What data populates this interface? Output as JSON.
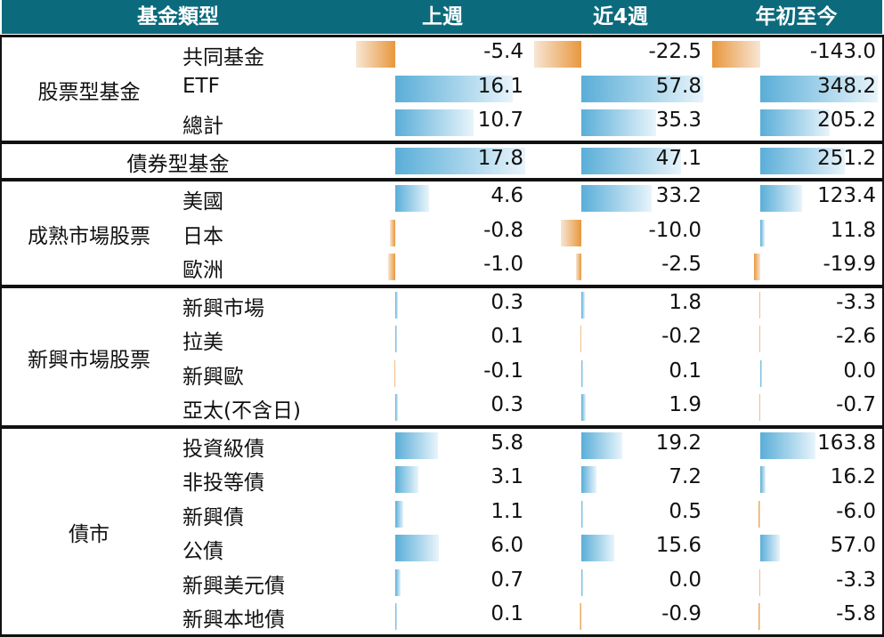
{
  "chart_data": {
    "type": "table",
    "columns": [
      "基金類型",
      "上週",
      "近4週",
      "年初至今"
    ],
    "groups": [
      {
        "name": "股票型基金",
        "rows": [
          {
            "label": "共同基金",
            "values": [
              -5.4,
              -22.5,
              -143.0
            ],
            "text": [
              "-5.4",
              "-22.5",
              "-143.0"
            ]
          },
          {
            "label": "ETF",
            "values": [
              16.1,
              57.8,
              348.2
            ],
            "text": [
              "16.1",
              "57.8",
              "348.2"
            ]
          },
          {
            "label": "總計",
            "values": [
              10.7,
              35.3,
              205.2
            ],
            "text": [
              "10.7",
              "35.3",
              "205.2"
            ]
          }
        ]
      },
      {
        "name": "債券型基金",
        "rows": [
          {
            "label": "",
            "values": [
              17.8,
              47.1,
              251.2
            ],
            "text": [
              "17.8",
              "47.1",
              "251.2"
            ]
          }
        ]
      },
      {
        "name": "成熟市場股票",
        "rows": [
          {
            "label": "美國",
            "values": [
              4.6,
              33.2,
              123.4
            ],
            "text": [
              "4.6",
              "33.2",
              "123.4"
            ]
          },
          {
            "label": "日本",
            "values": [
              -0.8,
              -10.0,
              11.8
            ],
            "text": [
              "-0.8",
              "-10.0",
              "11.8"
            ]
          },
          {
            "label": "歐洲",
            "values": [
              -1.0,
              -2.5,
              -19.9
            ],
            "text": [
              "-1.0",
              "-2.5",
              "-19.9"
            ]
          }
        ]
      },
      {
        "name": "新興市場股票",
        "rows": [
          {
            "label": "新興市場",
            "values": [
              0.3,
              1.8,
              -3.3
            ],
            "text": [
              "0.3",
              "1.8",
              "-3.3"
            ]
          },
          {
            "label": "拉美",
            "values": [
              0.1,
              -0.2,
              -2.6
            ],
            "text": [
              "0.1",
              "-0.2",
              "-2.6"
            ]
          },
          {
            "label": "新興歐",
            "values": [
              -0.1,
              0.1,
              0.0
            ],
            "text": [
              "-0.1",
              "0.1",
              "0.0"
            ]
          },
          {
            "label": "亞太(不含日)",
            "values": [
              0.3,
              1.9,
              -0.7
            ],
            "text": [
              "0.3",
              "1.9",
              "-0.7"
            ]
          }
        ]
      },
      {
        "name": "債市",
        "rows": [
          {
            "label": "投資級債",
            "values": [
              5.8,
              19.2,
              163.8
            ],
            "text": [
              "5.8",
              "19.2",
              "163.8"
            ]
          },
          {
            "label": "非投等債",
            "values": [
              3.1,
              7.2,
              16.2
            ],
            "text": [
              "3.1",
              "7.2",
              "16.2"
            ]
          },
          {
            "label": "新興債",
            "values": [
              1.1,
              0.5,
              -6.0
            ],
            "text": [
              "1.1",
              "0.5",
              "-6.0"
            ]
          },
          {
            "label": "公債",
            "values": [
              6.0,
              15.6,
              57.0
            ],
            "text": [
              "6.0",
              "15.6",
              "57.0"
            ]
          },
          {
            "label": "新興美元債",
            "values": [
              0.7,
              0.0,
              -3.3
            ],
            "text": [
              "0.7",
              "0.0",
              "-3.3"
            ]
          },
          {
            "label": "新興本地債",
            "values": [
              0.1,
              -0.9,
              -5.8
            ],
            "text": [
              "0.1",
              "-0.9",
              "-5.8"
            ]
          }
        ]
      }
    ],
    "colors": {
      "header": "#0c6a7d",
      "positive": "#5aaed8",
      "negative": "#e8973e"
    }
  }
}
